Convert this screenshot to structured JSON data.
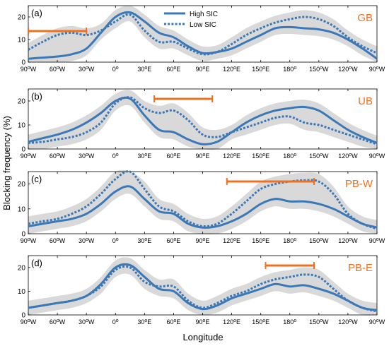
{
  "figure": {
    "ylabel": "Blocking frequency (%)",
    "xlabel": "Longitude",
    "legend": [
      "High SIC",
      "Low SIC"
    ],
    "colors": {
      "high": "#3a78b8",
      "low": "#3a78b8",
      "spread": "#d9d9d9",
      "bracket": "#f07020",
      "region_label": "#f07020"
    }
  },
  "chart_data": [
    {
      "type": "line",
      "panel": "(a)",
      "region": "GB",
      "x": [
        -90,
        -75,
        -60,
        -45,
        -30,
        -15,
        0,
        15,
        30,
        45,
        60,
        75,
        90,
        105,
        120,
        135,
        150,
        165,
        180,
        195,
        210,
        225,
        240,
        255,
        270
      ],
      "series": [
        {
          "name": "High SIC",
          "values": [
            1.5,
            2,
            2.5,
            3.5,
            6,
            13,
            20,
            22,
            18,
            13,
            11,
            7,
            4,
            4.5,
            6,
            9,
            12,
            15,
            15.5,
            15,
            14.5,
            13,
            10,
            6,
            1.5
          ]
        },
        {
          "name": "Low SIC",
          "values": [
            5.5,
            9,
            12,
            13,
            12,
            14,
            18,
            21,
            14,
            9,
            9,
            6,
            3.5,
            4.5,
            8,
            12,
            15,
            17.5,
            19,
            20,
            19,
            16,
            11,
            7,
            4
          ]
        }
      ],
      "bracket": [
        -90,
        -30
      ],
      "ylim": [
        0,
        25
      ],
      "yticks": [
        0,
        10,
        20
      ],
      "xtick_labels": [
        "90°W",
        "60°W",
        "30°W",
        "0°",
        "30°E",
        "60°E",
        "90°E",
        "120°E",
        "150°E",
        "180°",
        "150°W",
        "120°W",
        "90°W"
      ]
    },
    {
      "type": "line",
      "panel": "(b)",
      "region": "UB",
      "x": [
        -90,
        -75,
        -60,
        -45,
        -30,
        -15,
        0,
        15,
        30,
        45,
        60,
        75,
        90,
        105,
        120,
        135,
        150,
        165,
        180,
        195,
        210,
        225,
        240,
        255,
        270
      ],
      "series": [
        {
          "name": "High SIC",
          "values": [
            3,
            4.5,
            6,
            8,
            11,
            15,
            20,
            21,
            14,
            8,
            7,
            4,
            2,
            3,
            7,
            11,
            14,
            16,
            17,
            17.5,
            16,
            12,
            8,
            5,
            2.5
          ]
        },
        {
          "name": "Low SIC",
          "values": [
            2.5,
            3,
            4,
            5,
            7,
            11,
            19,
            21.5,
            17,
            15,
            16,
            12,
            6,
            5,
            7,
            9,
            11,
            13,
            13.5,
            11,
            10,
            8,
            6,
            4,
            2
          ]
        }
      ],
      "bracket": [
        40,
        100
      ],
      "ylim": [
        0,
        25
      ],
      "yticks": [
        0,
        10,
        20
      ],
      "xtick_labels": [
        "90°W",
        "60°W",
        "30°W",
        "0°",
        "30°E",
        "60°E",
        "90°E",
        "120°E",
        "150°E",
        "180°",
        "150°W",
        "120°W",
        "90°W"
      ]
    },
    {
      "type": "line",
      "panel": "(c)",
      "region": "PB-W",
      "x": [
        -90,
        -75,
        -60,
        -45,
        -30,
        -15,
        0,
        15,
        30,
        45,
        60,
        75,
        90,
        105,
        120,
        135,
        150,
        165,
        180,
        195,
        210,
        225,
        240,
        255,
        270
      ],
      "series": [
        {
          "name": "High SIC",
          "values": [
            3,
            4,
            5,
            6,
            8,
            12,
            17,
            19,
            14,
            9,
            8,
            4,
            2.5,
            3,
            5,
            8,
            12,
            14,
            13,
            13,
            12,
            10,
            7,
            4,
            2.5
          ]
        },
        {
          "name": "Low SIC",
          "values": [
            4,
            5,
            6,
            8,
            11,
            16,
            22,
            25,
            18,
            11,
            9,
            5,
            3,
            4,
            8,
            13,
            18,
            20,
            21,
            21.5,
            21,
            16,
            8,
            4,
            2
          ]
        }
      ],
      "bracket": [
        115,
        205
      ],
      "ylim": [
        0,
        25
      ],
      "yticks": [
        0,
        10,
        20
      ],
      "xtick_labels": [
        "90°W",
        "60°W",
        "30°W",
        "0°",
        "30°E",
        "60°E",
        "90°E",
        "120°E",
        "150°E",
        "180°",
        "150°W",
        "120°W",
        "90°W"
      ]
    },
    {
      "type": "line",
      "panel": "(d)",
      "region": "PB-E",
      "x": [
        -90,
        -75,
        -60,
        -45,
        -30,
        -15,
        0,
        15,
        30,
        45,
        60,
        75,
        90,
        105,
        120,
        135,
        150,
        165,
        180,
        195,
        210,
        225,
        240,
        255,
        270
      ],
      "series": [
        {
          "name": "High SIC",
          "values": [
            3,
            4,
            5,
            6,
            8,
            13,
            20,
            21,
            16,
            11,
            10,
            5,
            2.5,
            4,
            7,
            9,
            11,
            13,
            12,
            12.5,
            11,
            9,
            6,
            3,
            2
          ]
        },
        {
          "name": "Low SIC",
          "values": [
            3,
            4,
            5,
            6,
            8,
            12,
            19,
            20,
            14,
            12,
            12,
            6,
            3,
            5,
            8,
            10,
            13,
            15,
            16,
            17,
            16,
            11,
            6,
            3,
            1.5
          ]
        }
      ],
      "bracket": [
        155,
        205
      ],
      "ylim": [
        0,
        25
      ],
      "yticks": [
        0,
        10,
        20
      ],
      "xtick_labels": [
        "90°W",
        "60°W",
        "30°W",
        "0°",
        "30°E",
        "60°E",
        "90°E",
        "120°E",
        "150°E",
        "180°",
        "150°W",
        "120°W",
        "90°W"
      ]
    }
  ]
}
